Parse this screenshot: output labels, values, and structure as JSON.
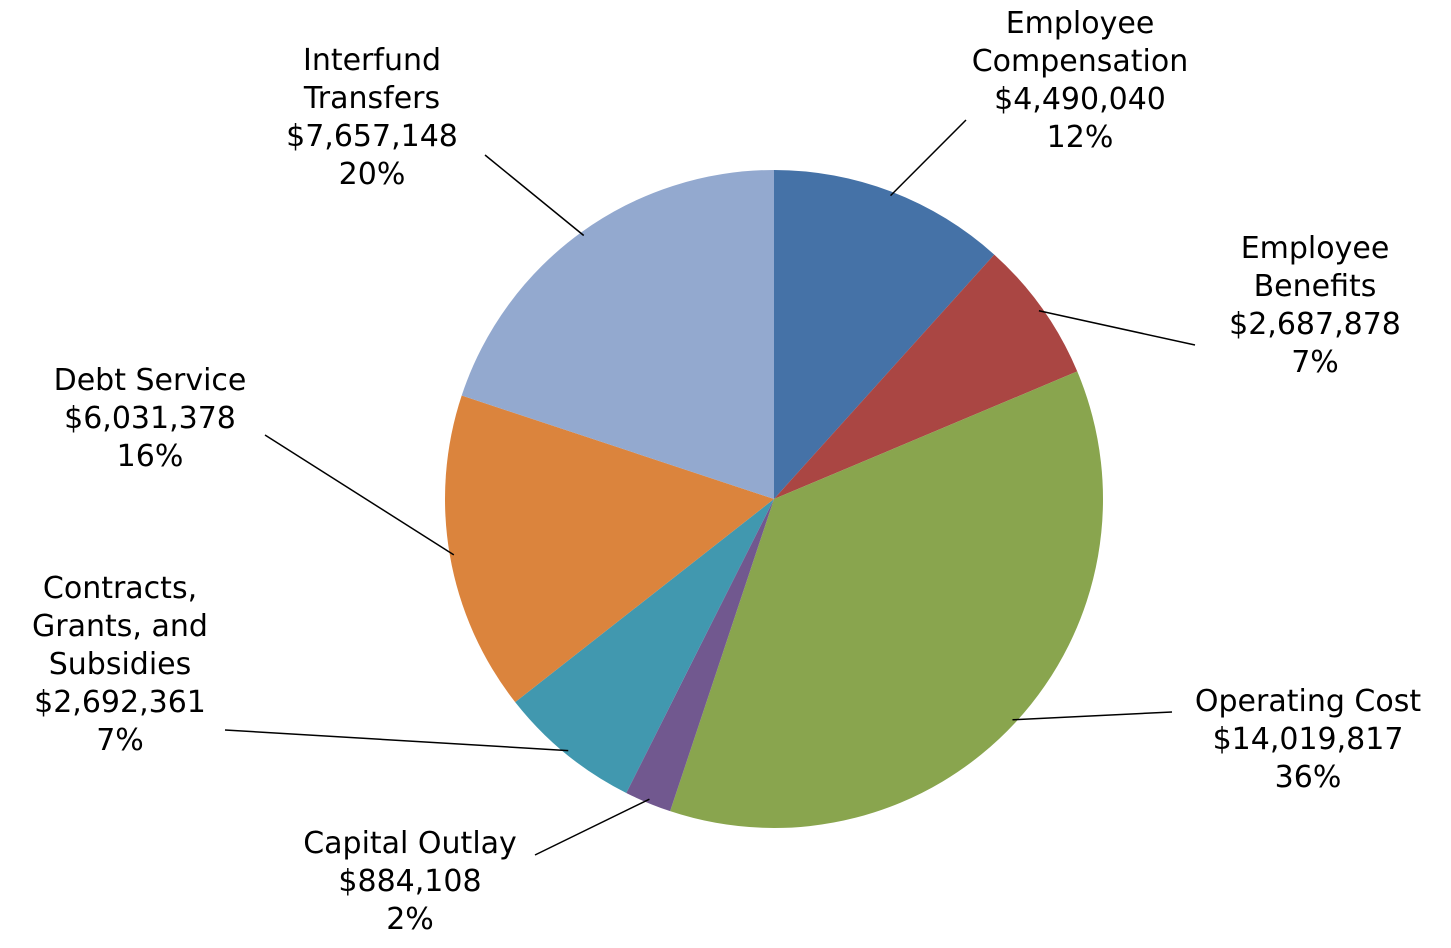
{
  "chart_data": {
    "type": "pie",
    "categories": [
      "Employee Compensation",
      "Employee Benefits",
      "Operating Cost",
      "Capital Outlay",
      "Contracts, Grants, and Subsidies",
      "Debt Service",
      "Interfund Transfers"
    ],
    "values": [
      4490040,
      2687878,
      14019817,
      884108,
      2692361,
      6031378,
      7657148
    ],
    "value_labels": [
      "$4,490,040",
      "$2,687,878",
      "$14,019,817",
      "$884,108",
      "$2,692,361",
      "$6,031,378",
      "$7,657,148"
    ],
    "percent_labels": [
      "12%",
      "7%",
      "36%",
      "2%",
      "7%",
      "16%",
      "20%"
    ],
    "colors": [
      "#4572a7",
      "#aa4643",
      "#89a54e",
      "#71588f",
      "#4198af",
      "#db843d",
      "#93a9cf"
    ]
  }
}
